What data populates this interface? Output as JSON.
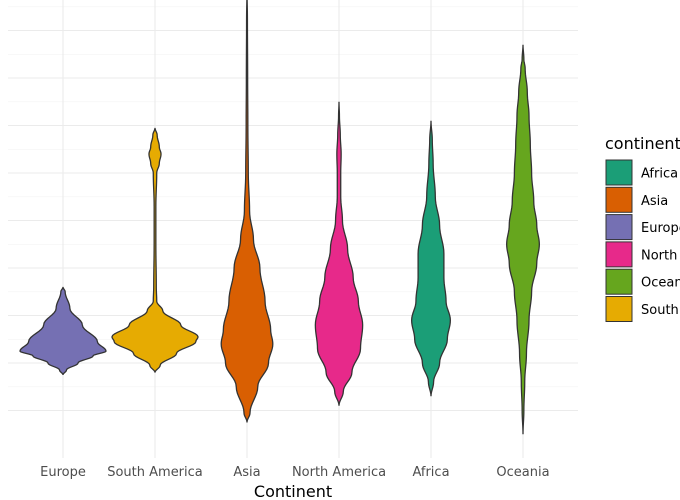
{
  "chart_data": {
    "type": "violin",
    "xlabel": "Continent",
    "ylabel": "",
    "ylim": [
      0,
      10
    ],
    "grid": true,
    "y_axis_labels_visible": false,
    "legend": {
      "title": "continent_",
      "position": "right",
      "entries": [
        {
          "label": "Africa",
          "color": "#1b9e77"
        },
        {
          "label": "Asia",
          "color": "#d95f02"
        },
        {
          "label": "Europe",
          "color": "#7570b3"
        },
        {
          "label": "North",
          "color": "#e7298a"
        },
        {
          "label": "Ocean",
          "color": "#66a61e"
        },
        {
          "label": "South",
          "color": "#e6ab02"
        }
      ]
    },
    "categories": [
      "Europe",
      "South America",
      "Asia",
      "North America",
      "Africa",
      "Oceania"
    ],
    "series": [
      {
        "category": "Europe",
        "color": "#7570b3",
        "profile": [
          [
            1.75,
            0
          ],
          [
            1.85,
            0.08
          ],
          [
            2.0,
            0.35
          ],
          [
            2.15,
            0.7
          ],
          [
            2.25,
            1.0
          ],
          [
            2.45,
            0.8
          ],
          [
            2.8,
            0.45
          ],
          [
            3.15,
            0.16
          ],
          [
            3.5,
            0.05
          ],
          [
            3.6,
            0
          ]
        ]
      },
      {
        "category": "South America",
        "color": "#e6ab02",
        "profile": [
          [
            1.8,
            0
          ],
          [
            1.95,
            0.12
          ],
          [
            2.2,
            0.5
          ],
          [
            2.45,
            0.95
          ],
          [
            2.55,
            1.0
          ],
          [
            2.8,
            0.6
          ],
          [
            3.1,
            0.18
          ],
          [
            3.3,
            0.04
          ],
          [
            3.6,
            0.03
          ],
          [
            4.5,
            0.02
          ],
          [
            5.3,
            0.02
          ],
          [
            6.0,
            0.04
          ],
          [
            6.2,
            0.1
          ],
          [
            6.4,
            0.14
          ],
          [
            6.55,
            0.1
          ],
          [
            6.8,
            0.05
          ],
          [
            6.95,
            0
          ]
        ]
      },
      {
        "category": "Asia",
        "color": "#d95f02",
        "profile": [
          [
            0.75,
            0
          ],
          [
            0.95,
            0.07
          ],
          [
            1.5,
            0.25
          ],
          [
            2.0,
            0.5
          ],
          [
            2.4,
            0.6
          ],
          [
            2.7,
            0.55
          ],
          [
            3.3,
            0.42
          ],
          [
            4.0,
            0.3
          ],
          [
            4.6,
            0.15
          ],
          [
            5.2,
            0.06
          ],
          [
            6.0,
            0.03
          ],
          [
            7.0,
            0.02
          ],
          [
            8.0,
            0.015
          ],
          [
            9.2,
            0.01
          ],
          [
            9.9,
            0
          ]
        ]
      },
      {
        "category": "North America",
        "color": "#e7298a",
        "profile": [
          [
            1.1,
            0
          ],
          [
            1.4,
            0.1
          ],
          [
            1.8,
            0.3
          ],
          [
            2.3,
            0.5
          ],
          [
            2.8,
            0.55
          ],
          [
            3.3,
            0.45
          ],
          [
            3.8,
            0.33
          ],
          [
            4.4,
            0.2
          ],
          [
            5.0,
            0.08
          ],
          [
            5.5,
            0.04
          ],
          [
            6.0,
            0.04
          ],
          [
            6.4,
            0.05
          ],
          [
            6.8,
            0.03
          ],
          [
            7.2,
            0.01
          ],
          [
            7.5,
            0
          ]
        ]
      },
      {
        "category": "Africa",
        "color": "#1b9e77",
        "profile": [
          [
            1.3,
            0
          ],
          [
            1.6,
            0.06
          ],
          [
            2.0,
            0.2
          ],
          [
            2.5,
            0.38
          ],
          [
            2.9,
            0.45
          ],
          [
            3.3,
            0.35
          ],
          [
            3.8,
            0.3
          ],
          [
            4.3,
            0.3
          ],
          [
            4.9,
            0.2
          ],
          [
            5.5,
            0.1
          ],
          [
            6.2,
            0.05
          ],
          [
            6.7,
            0.03
          ],
          [
            7.1,
            0
          ]
        ]
      },
      {
        "category": "Oceania",
        "color": "#66a61e",
        "profile": [
          [
            0.5,
            0
          ],
          [
            1.0,
            0.02
          ],
          [
            1.6,
            0.04
          ],
          [
            2.2,
            0.08
          ],
          [
            2.9,
            0.14
          ],
          [
            3.5,
            0.2
          ],
          [
            4.1,
            0.32
          ],
          [
            4.5,
            0.38
          ],
          [
            4.9,
            0.32
          ],
          [
            5.4,
            0.25
          ],
          [
            6.0,
            0.2
          ],
          [
            6.6,
            0.17
          ],
          [
            7.2,
            0.14
          ],
          [
            7.7,
            0.1
          ],
          [
            8.2,
            0.05
          ],
          [
            8.4,
            0.02
          ],
          [
            8.7,
            0
          ]
        ]
      }
    ]
  }
}
